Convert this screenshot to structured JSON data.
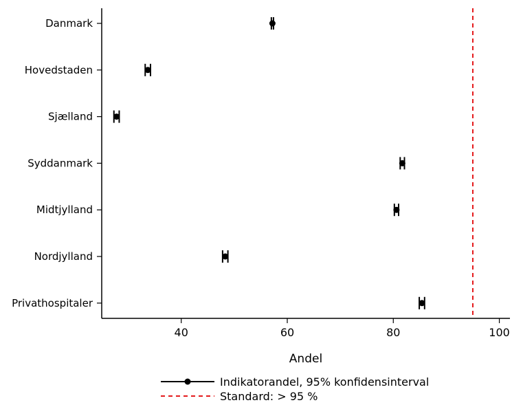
{
  "chart_data": {
    "type": "scatter",
    "title": "",
    "xlabel": "Andel",
    "ylabel": "",
    "xlim": [
      25,
      102
    ],
    "xticks": [
      40,
      60,
      80,
      100
    ],
    "grid": false,
    "categories": [
      "Danmark",
      "Hovedstaden",
      "Sjælland",
      "Syddanmark",
      "Midtjylland",
      "Nordjylland",
      "Privathospitaler"
    ],
    "series": [
      {
        "name": "Indikatorandel, 95% konfidensinterval",
        "values": [
          57.2,
          33.7,
          27.8,
          81.7,
          80.6,
          48.3,
          85.4
        ],
        "ci_low": [
          57.0,
          33.2,
          27.3,
          81.3,
          80.2,
          47.8,
          84.9
        ],
        "ci_high": [
          57.4,
          34.2,
          28.3,
          82.1,
          81.0,
          48.8,
          85.9
        ]
      }
    ],
    "reference_line": {
      "name": "Standard: > 95 %",
      "value": 95,
      "color": "#e41a1c",
      "style": "dashed"
    },
    "legend": {
      "placement": "bottom",
      "entries": [
        "Indikatorandel, 95% konfidensinterval",
        "Standard: > 95 %"
      ]
    },
    "colors": {
      "points": "#000000",
      "standard": "#e41a1c"
    }
  }
}
